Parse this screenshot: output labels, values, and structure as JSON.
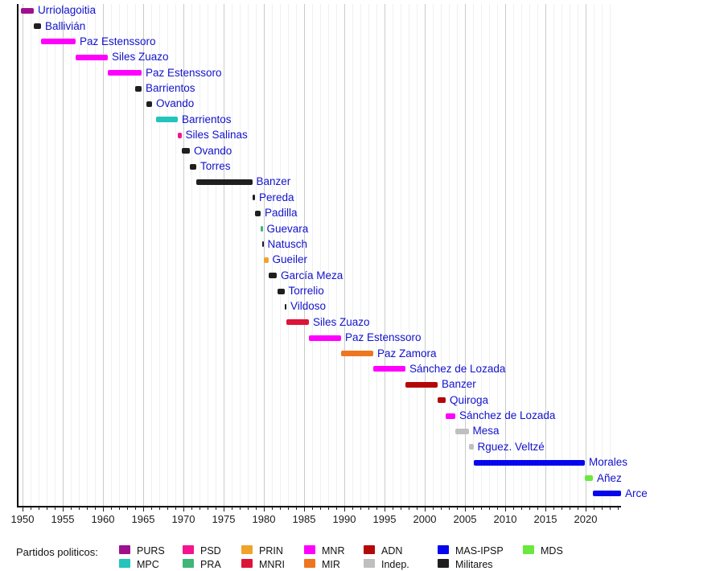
{
  "chart_data": {
    "type": "bar",
    "variant": "timeline-gantt",
    "title": "",
    "xlabel": "",
    "ylabel": "",
    "x_range": [
      1949.3,
      2024.4
    ],
    "x_major_ticks": [
      1950,
      1955,
      1960,
      1965,
      1970,
      1975,
      1980,
      1985,
      1990,
      1995,
      2000,
      2005,
      2010,
      2015,
      2020
    ],
    "x_minor_tick_step": 1,
    "grid": "vertical-yearly",
    "legend_position": "bottom",
    "presidents": [
      {
        "name": "Urriolagoitia",
        "party": "PURS",
        "start": 1949.8,
        "end": 1951.4
      },
      {
        "name": "Ballivián",
        "party": "Militares",
        "start": 1951.4,
        "end": 1952.3
      },
      {
        "name": "Paz Estenssoro",
        "party": "MNR",
        "start": 1952.3,
        "end": 1956.6
      },
      {
        "name": "Siles Zuazo",
        "party": "MNR",
        "start": 1956.6,
        "end": 1960.6
      },
      {
        "name": "Paz Estenssoro",
        "party": "MNR",
        "start": 1960.6,
        "end": 1964.8
      },
      {
        "name": "Barrientos",
        "party": "Militares",
        "start": 1964.0,
        "end": 1964.8
      },
      {
        "name": "Ovando",
        "party": "Militares",
        "start": 1965.4,
        "end": 1966.1
      },
      {
        "name": "Barrientos",
        "party": "MPC",
        "start": 1966.6,
        "end": 1969.3
      },
      {
        "name": "Siles Salinas",
        "party": "PSD",
        "start": 1969.3,
        "end": 1969.75
      },
      {
        "name": "Ovando",
        "party": "Militares",
        "start": 1969.75,
        "end": 1970.8
      },
      {
        "name": "Torres",
        "party": "Militares",
        "start": 1970.8,
        "end": 1971.6
      },
      {
        "name": "Banzer",
        "party": "Militares",
        "start": 1971.6,
        "end": 1978.55
      },
      {
        "name": "Pereda",
        "party": "Militares",
        "start": 1978.55,
        "end": 1978.9
      },
      {
        "name": "Padilla",
        "party": "Militares",
        "start": 1978.9,
        "end": 1979.6
      },
      {
        "name": "Guevara",
        "party": "PRA",
        "start": 1979.6,
        "end": 1979.85
      },
      {
        "name": "Natusch",
        "party": "Militares",
        "start": 1979.83,
        "end": 1979.95
      },
      {
        "name": "Gueiler",
        "party": "PRIN",
        "start": 1979.95,
        "end": 1980.55
      },
      {
        "name": "García Meza",
        "party": "Militares",
        "start": 1980.55,
        "end": 1981.6
      },
      {
        "name": "Torrelio",
        "party": "Militares",
        "start": 1981.7,
        "end": 1982.55
      },
      {
        "name": "Vildoso",
        "party": "Militares",
        "start": 1982.55,
        "end": 1982.8
      },
      {
        "name": "Siles Zuazo",
        "party": "MNRI",
        "start": 1982.8,
        "end": 1985.6
      },
      {
        "name": "Paz Estenssoro",
        "party": "MNR",
        "start": 1985.6,
        "end": 1989.6
      },
      {
        "name": "Paz Zamora",
        "party": "MIR",
        "start": 1989.6,
        "end": 1993.6
      },
      {
        "name": "Sánchez de Lozada",
        "party": "MNR",
        "start": 1993.6,
        "end": 1997.6
      },
      {
        "name": "Banzer",
        "party": "ADN",
        "start": 1997.6,
        "end": 2001.6
      },
      {
        "name": "Quiroga",
        "party": "ADN",
        "start": 2001.6,
        "end": 2002.6
      },
      {
        "name": "Sánchez de Lozada",
        "party": "MNR",
        "start": 2002.6,
        "end": 2003.8
      },
      {
        "name": "Mesa",
        "party": "Indep.",
        "start": 2003.8,
        "end": 2005.45
      },
      {
        "name": "Rguez. Veltzé",
        "party": "Indep.",
        "start": 2005.45,
        "end": 2006.05
      },
      {
        "name": "Morales",
        "party": "MAS-IPSP",
        "start": 2006.05,
        "end": 2019.9
      },
      {
        "name": "Añez",
        "party": "MDS",
        "start": 2019.9,
        "end": 2020.9
      },
      {
        "name": "Arce",
        "party": "MAS-IPSP",
        "start": 2020.9,
        "end": 2024.4
      }
    ],
    "party_colors": {
      "PURS": "#a0108e",
      "MPC": "#22c4bc",
      "PSD": "#f5148f",
      "PRA": "#3fb578",
      "PRIN": "#f0a32a",
      "MNRI": "#dc1438",
      "MNR": "#ff00ff",
      "MIR": "#ee7621",
      "ADN": "#b40808",
      "MAS-IPSP": "#0505ee",
      "MDS": "#6ae93c",
      "Indep.": "#bfbfbf",
      "Militares": "#1f1f1f"
    },
    "legend": {
      "title": "Partidos politicos:",
      "columns": [
        [
          "PURS",
          "MPC"
        ],
        [
          "PSD",
          "PRA"
        ],
        [
          "PRIN",
          "MNRI"
        ],
        [
          "MNR",
          "MIR"
        ],
        [
          "ADN",
          "Indep."
        ],
        [
          "MAS-IPSP",
          "Militares"
        ],
        [
          "MDS"
        ]
      ]
    },
    "style": {
      "label_color": "#1212cc",
      "axis_color": "#000000",
      "tick_label_color": "#1a1a1a",
      "grid_minor_color": "#eef1f1",
      "grid_major_color": "#c9cbcb"
    }
  }
}
